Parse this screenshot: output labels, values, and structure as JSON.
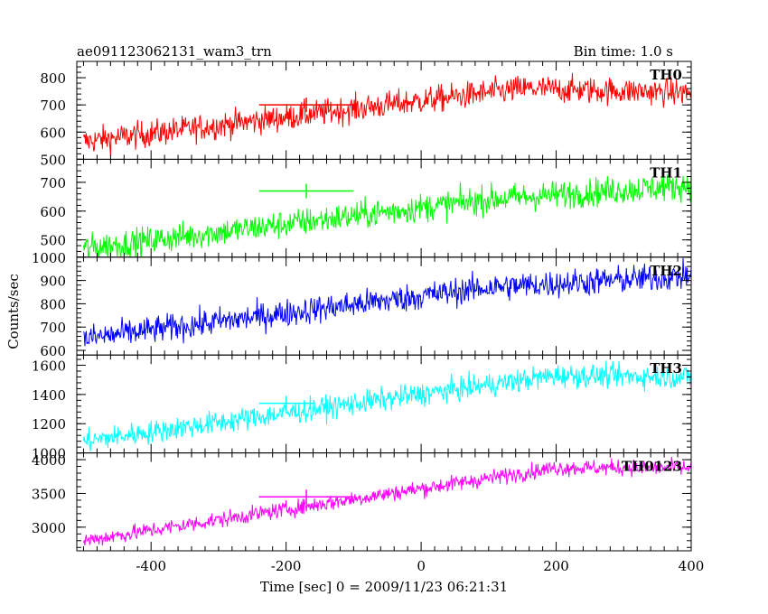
{
  "header": {
    "title": "ae091123062131_wam3_trn",
    "bin_time": "Bin time: 1.0 s"
  },
  "axes": {
    "ylabel": "Counts/sec",
    "xlabel": "Time [sec] 0 = 2009/11/23 06:21:31",
    "xlim": [
      -510,
      400
    ],
    "xticks": [
      -400,
      -200,
      0,
      200,
      400
    ]
  },
  "chart_data": [
    {
      "type": "line",
      "panel": "TH0",
      "series": [
        {
          "name": "TH0",
          "color": "#ff0000"
        }
      ],
      "x_range": [
        -500,
        400
      ],
      "trend": {
        "x": [
          -500,
          150,
          400
        ],
        "y": [
          565,
          760,
          745
        ]
      },
      "noise_sd": 25,
      "ylim": [
        500,
        860
      ],
      "yticks": [
        500,
        600,
        700,
        800
      ],
      "error_bar": {
        "x": -170,
        "y": 700,
        "x_halfwidth": 70
      }
    },
    {
      "type": "line",
      "panel": "TH1",
      "series": [
        {
          "name": "TH1",
          "color": "#00ff00"
        }
      ],
      "x_range": [
        -500,
        400
      ],
      "trend": {
        "x": [
          -500,
          100,
          400
        ],
        "y": [
          470,
          640,
          690
        ]
      },
      "noise_sd": 25,
      "ylim": [
        440,
        780
      ],
      "yticks": [
        500,
        600,
        700
      ],
      "error_bar": {
        "x": -170,
        "y": 670,
        "x_halfwidth": 70
      }
    },
    {
      "type": "line",
      "panel": "TH2",
      "series": [
        {
          "name": "TH2",
          "color": "#0000ff"
        }
      ],
      "x_range": [
        -500,
        400
      ],
      "trend": {
        "x": [
          -500,
          100,
          400
        ],
        "y": [
          650,
          870,
          920
        ]
      },
      "noise_sd": 30,
      "ylim": [
        580,
        1000
      ],
      "yticks": [
        600,
        700,
        800,
        900,
        1000
      ],
      "error_bar": null
    },
    {
      "type": "line",
      "panel": "TH3",
      "series": [
        {
          "name": "TH3",
          "color": "#00ffff"
        }
      ],
      "x_range": [
        -500,
        400
      ],
      "trend": {
        "x": [
          -500,
          200,
          400
        ],
        "y": [
          1080,
          1530,
          1520
        ]
      },
      "noise_sd": 40,
      "ylim": [
        1000,
        1670
      ],
      "yticks": [
        1000,
        1200,
        1400,
        1600
      ],
      "error_bar": {
        "x": -200,
        "y": 1340,
        "x_halfwidth": 40
      }
    },
    {
      "type": "line",
      "panel": "TH0123",
      "series": [
        {
          "name": "TH0123",
          "color": "#ff00ff"
        }
      ],
      "x_range": [
        -500,
        400
      ],
      "trend": {
        "x": [
          -500,
          200,
          400
        ],
        "y": [
          2800,
          3880,
          3880
        ]
      },
      "noise_sd": 60,
      "ylim": [
        2650,
        4100
      ],
      "yticks": [
        3000,
        3500,
        4000
      ],
      "error_bar": {
        "x": -170,
        "y": 3450,
        "x_halfwidth": 70
      }
    }
  ]
}
